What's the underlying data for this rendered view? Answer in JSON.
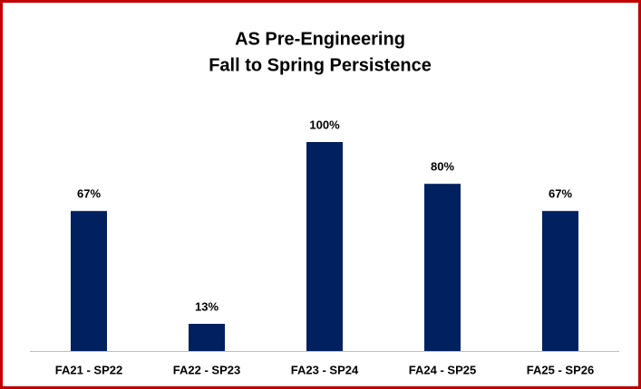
{
  "chart_data": {
    "type": "bar",
    "title": [
      "AS Pre-Engineering",
      "Fall to Spring Persistence"
    ],
    "categories": [
      "FA21 - SP22",
      "FA22 - SP23",
      "FA23 - SP24",
      "FA24 - SP25",
      "FA25 - SP26"
    ],
    "values": [
      67,
      13,
      100,
      80,
      67
    ],
    "value_labels": [
      "67%",
      "13%",
      "100%",
      "80%",
      "67%"
    ],
    "color": "#002060",
    "ylim": [
      0,
      100
    ]
  }
}
